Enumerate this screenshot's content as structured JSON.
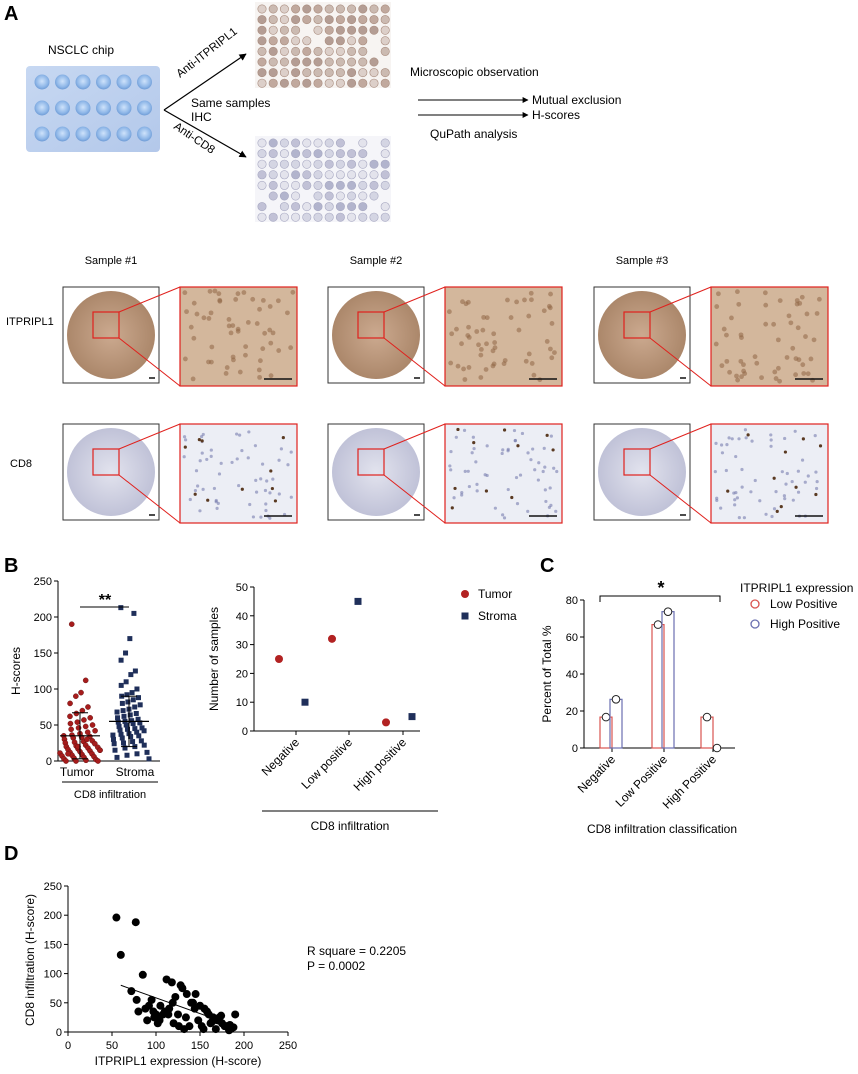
{
  "panels": {
    "A": {
      "letter": "A",
      "chip_label": "NSCLC chip",
      "anti_itpripl1": "Anti-ITPRIPL1",
      "anti_cd8": "Anti-CD8",
      "same_samples": "Same samples",
      "ihc": "IHC",
      "microscopic": "Microscopic observation",
      "qupath": "QuPath analysis",
      "mutual_exclusion": "Mutual exclusion",
      "h_scores": "H-scores",
      "samples": [
        "Sample #1",
        "Sample #2",
        "Sample #3"
      ],
      "row_labels": [
        "ITPRIPL1",
        "CD8"
      ]
    },
    "B": {
      "letter": "B"
    },
    "C": {
      "letter": "C"
    },
    "D": {
      "letter": "D"
    }
  },
  "chart_data": [
    {
      "id": "B-left",
      "type": "scatter",
      "categories": [
        "Tumor",
        "Stroma"
      ],
      "ylabel": "H-scores",
      "xlabel": "CD8 infiltration",
      "ylim": [
        0,
        250
      ],
      "yticks": [
        0,
        50,
        100,
        150,
        200,
        250
      ],
      "significance": "**",
      "series": [
        {
          "name": "Tumor",
          "mean": 35,
          "sd": 32,
          "points": [
            190,
            112,
            95,
            90,
            80,
            75,
            70,
            66,
            62,
            60,
            57,
            54,
            52,
            50,
            48,
            46,
            44,
            42,
            40,
            38,
            36,
            35,
            34,
            33,
            32,
            30,
            28,
            27,
            26,
            25,
            24,
            22,
            21,
            20,
            19,
            18,
            17,
            16,
            15,
            14,
            13,
            12,
            11,
            10,
            9,
            8,
            7,
            6,
            5,
            4,
            3,
            2,
            1,
            0,
            0,
            0,
            30,
            20,
            10,
            15
          ]
        },
        {
          "name": "Stroma",
          "mean": 55,
          "sd": 35,
          "points": [
            213,
            205,
            170,
            150,
            140,
            125,
            120,
            110,
            105,
            100,
            95,
            92,
            90,
            88,
            85,
            82,
            80,
            78,
            75,
            72,
            70,
            68,
            66,
            64,
            62,
            60,
            58,
            56,
            55,
            54,
            53,
            52,
            50,
            48,
            46,
            45,
            44,
            43,
            42,
            40,
            38,
            37,
            36,
            35,
            34,
            32,
            30,
            28,
            27,
            25,
            24,
            22,
            20,
            18,
            15,
            12,
            10,
            8,
            5,
            3
          ]
        }
      ]
    },
    {
      "id": "B-right",
      "type": "scatter",
      "categories": [
        "Negative",
        "Low positive",
        "High positive"
      ],
      "ylabel": "Number of samples",
      "xlabel": "CD8 infiltration",
      "ylim": [
        0,
        50
      ],
      "yticks": [
        0,
        10,
        20,
        30,
        40,
        50
      ],
      "legend": "top-right",
      "series": [
        {
          "name": "Tumor",
          "values": [
            25,
            32,
            3
          ],
          "color": "#b22222"
        },
        {
          "name": "Stroma",
          "values": [
            10,
            45,
            5
          ],
          "color": "#1f2f5a"
        }
      ]
    },
    {
      "id": "C",
      "type": "bar",
      "categories": [
        "Negative",
        "Low Positive",
        "High Positive"
      ],
      "ylabel": "Percent of Total %",
      "xlabel": "CD8 infiltration classification",
      "ylim": [
        0,
        80
      ],
      "yticks": [
        0,
        20,
        40,
        60,
        80
      ],
      "legend_title": "ITPRIPL1 expression",
      "legend": "top-right",
      "significance": "*",
      "series": [
        {
          "name": "Low Positive",
          "values": [
            16.7,
            66.7,
            16.7
          ],
          "color": "#d9534f"
        },
        {
          "name": "High Positive",
          "values": [
            26.3,
            73.7,
            0
          ],
          "color": "#6a6fb0"
        }
      ]
    },
    {
      "id": "D",
      "type": "scatter",
      "xlabel": "ITPRIPL1 expression (H-score)",
      "ylabel": "CD8 infiltration (H-score)",
      "xlim": [
        0,
        250
      ],
      "ylim": [
        0,
        250
      ],
      "xticks": [
        0,
        50,
        100,
        150,
        200,
        250
      ],
      "yticks": [
        0,
        50,
        100,
        150,
        200,
        250
      ],
      "annotation_r2": "R square = 0.2205",
      "annotation_p": "P = 0.0002",
      "fit": {
        "x": [
          60,
          190
        ],
        "y": [
          80,
          10
        ]
      },
      "x": [
        55,
        60,
        77,
        85,
        72,
        78,
        88,
        95,
        100,
        105,
        108,
        112,
        118,
        122,
        128,
        130,
        135,
        140,
        145,
        150,
        155,
        160,
        165,
        170,
        175,
        180,
        185,
        190,
        80,
        90,
        98,
        102,
        110,
        115,
        120,
        125,
        132,
        138,
        142,
        148,
        152,
        158,
        162,
        168,
        172,
        178,
        183,
        188,
        92,
        97,
        104,
        114,
        119,
        126,
        134,
        144,
        154,
        164,
        174,
        184
      ],
      "y": [
        196,
        132,
        188,
        98,
        70,
        55,
        40,
        55,
        30,
        45,
        30,
        90,
        85,
        60,
        80,
        75,
        65,
        50,
        65,
        45,
        40,
        30,
        25,
        20,
        15,
        10,
        5,
        30,
        35,
        20,
        25,
        15,
        35,
        40,
        15,
        30,
        5,
        10,
        50,
        20,
        10,
        35,
        15,
        5,
        25,
        10,
        3,
        8,
        45,
        35,
        20,
        30,
        50,
        10,
        25,
        40,
        5,
        18,
        28,
        12
      ]
    }
  ]
}
